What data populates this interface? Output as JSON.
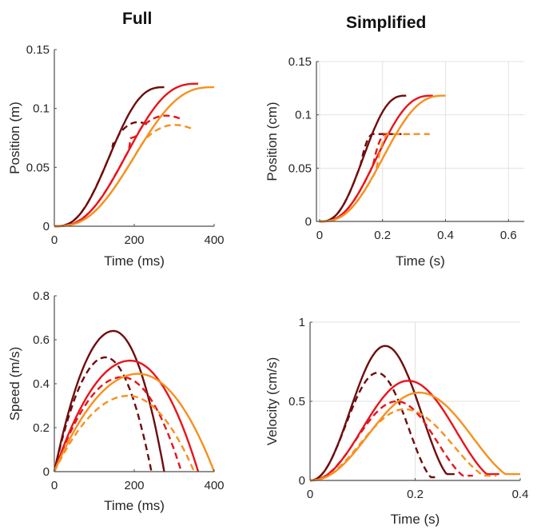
{
  "titles": {
    "left": "Full",
    "right": "Simplified"
  },
  "colors": {
    "dark": "#6e0d0d",
    "red": "#e8141c",
    "orange": "#f7901e"
  },
  "chart_data": [
    {
      "id": "full-position",
      "type": "line",
      "xlabel": "Time (ms)",
      "ylabel": "Position (m)",
      "xlim": [
        0,
        400
      ],
      "ylim": [
        0,
        0.15
      ],
      "xticks": [
        0,
        200,
        400
      ],
      "yticks": [
        0,
        0.05,
        0.1,
        0.15
      ],
      "ytick_labels": [
        "0",
        "0.05",
        "0.1",
        "0.15"
      ],
      "grid": false,
      "series": [
        {
          "name": "dark-solid",
          "color": "dark",
          "dash": false,
          "kind": "pos",
          "T": 275,
          "A": 0.118
        },
        {
          "name": "dark-dashed",
          "color": "dark",
          "dash": true,
          "kind": "pos",
          "T": 240,
          "A": 0.085,
          "Tfull": 275,
          "Afull": 0.118
        },
        {
          "name": "red-solid",
          "color": "red",
          "dash": false,
          "kind": "pos",
          "T": 360,
          "A": 0.121
        },
        {
          "name": "red-dashed",
          "color": "red",
          "dash": true,
          "kind": "pos",
          "T": 318,
          "A": 0.091,
          "Tfull": 360,
          "Afull": 0.121
        },
        {
          "name": "orange-solid",
          "color": "orange",
          "dash": false,
          "kind": "pos",
          "T": 400,
          "A": 0.118
        },
        {
          "name": "orange-dashed",
          "color": "orange",
          "dash": true,
          "kind": "pos",
          "T": 350,
          "A": 0.082,
          "Tfull": 400,
          "Afull": 0.118
        }
      ]
    },
    {
      "id": "simplified-position",
      "type": "line",
      "xlabel": "Time (s)",
      "ylabel": "Position (cm)",
      "xlim": [
        -0.01,
        0.65
      ],
      "ylim": [
        0,
        0.15
      ],
      "xticks": [
        0,
        0.2,
        0.4,
        0.6
      ],
      "xtick_labels": [
        "0",
        "0.2",
        "0.4",
        "0.6"
      ],
      "yticks": [
        0,
        0.05,
        0.1,
        0.15
      ],
      "ytick_labels": [
        "0",
        "0.05",
        "0.1",
        "0.15"
      ],
      "grid": true,
      "series": [
        {
          "name": "dark-solid",
          "color": "dark",
          "dash": false,
          "kind": "minjerk-pos",
          "T": 0.275,
          "A": 0.118
        },
        {
          "name": "dark-dashed",
          "color": "dark",
          "dash": true,
          "kind": "trunc-pos",
          "T": 0.275,
          "A": 0.118,
          "cut": 0.13,
          "end": 0.26,
          "plateau": 0.082
        },
        {
          "name": "red-solid",
          "color": "red",
          "dash": false,
          "kind": "minjerk-pos",
          "T": 0.36,
          "A": 0.118
        },
        {
          "name": "red-dashed",
          "color": "red",
          "dash": true,
          "kind": "trunc-pos",
          "T": 0.36,
          "A": 0.118,
          "cut": 0.17,
          "end": 0.3,
          "plateau": 0.082
        },
        {
          "name": "orange-solid",
          "color": "orange",
          "dash": false,
          "kind": "minjerk-pos",
          "T": 0.4,
          "A": 0.118
        },
        {
          "name": "orange-dashed",
          "color": "orange",
          "dash": true,
          "kind": "trunc-pos",
          "T": 0.4,
          "A": 0.118,
          "cut": 0.18,
          "end": 0.35,
          "plateau": 0.082
        }
      ]
    },
    {
      "id": "full-speed",
      "type": "line",
      "xlabel": "Time (ms)",
      "ylabel": "Speed (m/s)",
      "xlim": [
        0,
        400
      ],
      "ylim": [
        0,
        0.8
      ],
      "xticks": [
        0,
        200,
        400
      ],
      "yticks": [
        0,
        0.2,
        0.4,
        0.6,
        0.8
      ],
      "ytick_labels": [
        "0",
        "0.2",
        "0.4",
        "0.6",
        "0.8"
      ],
      "grid": false,
      "series": [
        {
          "name": "dark-solid",
          "color": "dark",
          "dash": false,
          "kind": "arch",
          "T": 275,
          "peak": 0.64,
          "tpeak": 148
        },
        {
          "name": "dark-dashed",
          "color": "dark",
          "dash": true,
          "kind": "arch",
          "T": 243,
          "peak": 0.52,
          "tpeak": 128
        },
        {
          "name": "red-solid",
          "color": "red",
          "dash": false,
          "kind": "arch",
          "T": 360,
          "peak": 0.505,
          "tpeak": 190
        },
        {
          "name": "red-dashed",
          "color": "red",
          "dash": true,
          "kind": "arch",
          "T": 318,
          "peak": 0.43,
          "tpeak": 170
        },
        {
          "name": "orange-solid",
          "color": "orange",
          "dash": false,
          "kind": "arch",
          "T": 400,
          "peak": 0.445,
          "tpeak": 210
        },
        {
          "name": "orange-dashed",
          "color": "orange",
          "dash": true,
          "kind": "arch",
          "T": 350,
          "peak": 0.345,
          "tpeak": 185
        }
      ]
    },
    {
      "id": "simplified-velocity",
      "type": "line",
      "xlabel": "Time (s)",
      "ylabel": "Velocity (cm/s)",
      "xlim": [
        0,
        0.4
      ],
      "ylim": [
        0,
        1
      ],
      "xticks": [
        0,
        0.2,
        0.4
      ],
      "xtick_labels": [
        "0",
        "0.2",
        "0.4"
      ],
      "yticks": [
        0,
        0.5,
        1
      ],
      "ytick_labels": [
        "0",
        "0.5",
        "1"
      ],
      "grid": true,
      "series": [
        {
          "name": "dark-solid",
          "color": "dark",
          "dash": false,
          "kind": "bell",
          "t0": 0.0,
          "t1": 0.275,
          "peak": 0.85,
          "tpeak": 0.143,
          "floor": 0.04
        },
        {
          "name": "dark-dashed",
          "color": "dark",
          "dash": true,
          "kind": "bell",
          "t0": 0.0,
          "t1": 0.24,
          "peak": 0.68,
          "tpeak": 0.128,
          "floor": 0.02
        },
        {
          "name": "red-solid",
          "color": "red",
          "dash": false,
          "kind": "bell",
          "t0": 0.0,
          "t1": 0.36,
          "peak": 0.63,
          "tpeak": 0.187,
          "floor": 0.04
        },
        {
          "name": "red-dashed",
          "color": "red",
          "dash": true,
          "kind": "bell",
          "t0": 0.0,
          "t1": 0.31,
          "peak": 0.5,
          "tpeak": 0.165,
          "floor": 0.03
        },
        {
          "name": "orange-solid",
          "color": "orange",
          "dash": false,
          "kind": "bell",
          "t0": 0.0,
          "t1": 0.4,
          "peak": 0.555,
          "tpeak": 0.208,
          "floor": 0.04
        },
        {
          "name": "orange-dashed",
          "color": "orange",
          "dash": true,
          "kind": "bell",
          "t0": 0.0,
          "t1": 0.355,
          "peak": 0.45,
          "tpeak": 0.18,
          "floor": 0.03
        }
      ]
    }
  ]
}
